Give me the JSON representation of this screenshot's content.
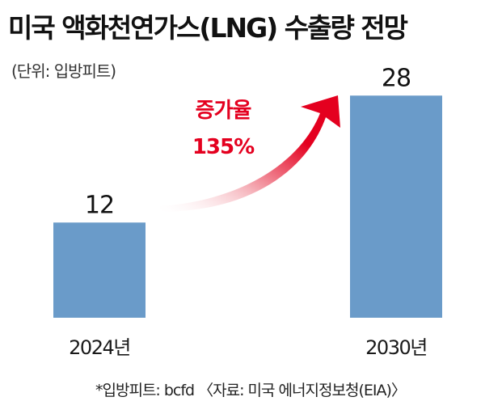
{
  "header": {
    "title": "미국 액화천연가스(LNG) 수출량 전망",
    "unit": "(단위: 입방피트)"
  },
  "annotation": {
    "growth_label": "증가율",
    "growth_value": "135%",
    "color": "#e4001f"
  },
  "footer": {
    "note": "*입방피트: bcfd 〈자료: 미국 에너지정보청(EIA)〉"
  },
  "chart_data": {
    "type": "bar",
    "categories": [
      "2024년",
      "2030년"
    ],
    "values": [
      12,
      28
    ],
    "value_labels": [
      "12",
      "28"
    ],
    "ylim": [
      0,
      32
    ],
    "grid": false,
    "bar_color": "#6a9bc9"
  }
}
